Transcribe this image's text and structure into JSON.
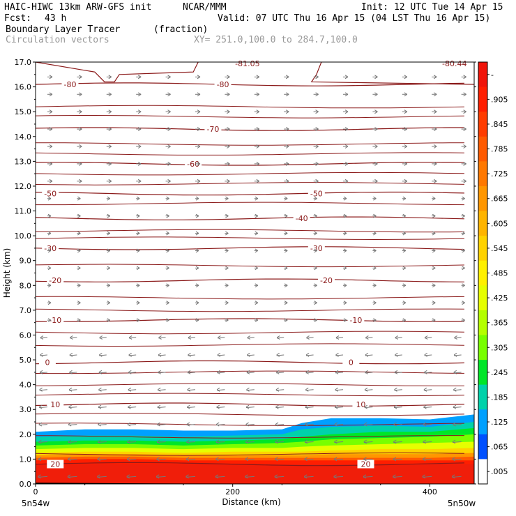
{
  "header": {
    "model": "HAIC-HIWC 13km ARW-GFS init",
    "org": "NCAR/MMM",
    "init": "Init: 12 UTC Tue 14 Apr 15",
    "fcst_label": "Fcst:",
    "fcst_value": "43 h",
    "valid": "Valid: 07 UTC Thu 16 Apr 15 (04 LST Thu 16 Apr 15)",
    "field": "Boundary Layer Tracer",
    "field_units": "(fraction)",
    "vectors": "Circulation vectors",
    "xy": "XY= 251.0,100.0 to 284.7,100.0"
  },
  "chart_data": {
    "type": "heatmap",
    "xlabel": "Distance (km)",
    "ylabel": "Height (km)",
    "xlim": [
      0,
      445
    ],
    "ylim": [
      0,
      17
    ],
    "x_ticks": [
      "0",
      "200",
      "400"
    ],
    "x_tick_values": [
      0,
      200,
      400
    ],
    "y_ticks": [
      "0.0",
      "1.0",
      "2.0",
      "3.0",
      "4.0",
      "5.0",
      "6.0",
      "7.0",
      "8.0",
      "9.0",
      "10.0",
      "11.0",
      "12.0",
      "13.0",
      "14.0",
      "15.0",
      "16.0",
      "17.0"
    ],
    "y_tick_values": [
      0,
      1,
      2,
      3,
      4,
      5,
      6,
      7,
      8,
      9,
      10,
      11,
      12,
      13,
      14,
      15,
      16,
      17
    ],
    "endpoint_left": "5n54w",
    "endpoint_right": "5n50w",
    "colorbar": {
      "labels": [
        "-",
        ".905",
        ".845",
        ".785",
        ".725",
        ".665",
        ".605",
        ".545",
        ".485",
        ".425",
        ".365",
        ".305",
        ".245",
        ".185",
        ".125",
        ".065",
        ".005"
      ],
      "colors": [
        "#f0140a",
        "#ff1e00",
        "#ff3c00",
        "#ff5a00",
        "#ff7800",
        "#ff9600",
        "#ffb400",
        "#ffd200",
        "#fff000",
        "#e6ff00",
        "#b4ff00",
        "#78ff00",
        "#00e628",
        "#00d2aa",
        "#00a0ff",
        "#0050ff",
        "#ffffff"
      ]
    },
    "tracer_layer": {
      "x_km": [
        0,
        50,
        100,
        150,
        200,
        250,
        270,
        300,
        350,
        400,
        445
      ],
      "top_km": [
        2.1,
        2.2,
        2.2,
        2.15,
        2.15,
        2.2,
        2.45,
        2.65,
        2.65,
        2.6,
        2.8
      ],
      "bands": [
        {
          "value": 0.065,
          "top_km": [
            2.1,
            2.2,
            2.2,
            2.15,
            2.15,
            2.2,
            2.45,
            2.65,
            2.65,
            2.6,
            2.8
          ]
        },
        {
          "value": 0.125,
          "top_km": [
            1.9,
            1.95,
            1.95,
            1.9,
            1.95,
            2.0,
            2.2,
            2.3,
            2.35,
            2.3,
            2.5
          ]
        },
        {
          "value": 0.185,
          "top_km": [
            1.7,
            1.75,
            1.75,
            1.7,
            1.75,
            1.8,
            1.9,
            2.0,
            2.1,
            2.1,
            2.25
          ]
        },
        {
          "value": 0.245,
          "top_km": [
            1.55,
            1.6,
            1.6,
            1.55,
            1.6,
            1.65,
            1.7,
            1.8,
            1.85,
            1.9,
            2.0
          ]
        },
        {
          "value": 0.365,
          "top_km": [
            1.4,
            1.45,
            1.45,
            1.4,
            1.45,
            1.45,
            1.5,
            1.55,
            1.6,
            1.65,
            1.7
          ]
        },
        {
          "value": 0.485,
          "top_km": [
            1.25,
            1.3,
            1.3,
            1.25,
            1.3,
            1.3,
            1.3,
            1.35,
            1.4,
            1.4,
            1.45
          ]
        },
        {
          "value": 0.605,
          "top_km": [
            1.15,
            1.2,
            1.2,
            1.15,
            1.15,
            1.15,
            1.15,
            1.2,
            1.2,
            1.2,
            1.25
          ]
        },
        {
          "value": 0.725,
          "top_km": [
            1.05,
            1.1,
            1.1,
            1.05,
            1.05,
            1.05,
            1.05,
            1.05,
            1.05,
            1.05,
            1.1
          ]
        },
        {
          "value": 0.845,
          "top_km": [
            0.95,
            1.0,
            1.0,
            0.95,
            0.95,
            0.95,
            0.95,
            0.95,
            0.95,
            0.95,
            0.95
          ]
        }
      ]
    },
    "temperature_contours": [
      {
        "label": "-80",
        "y_km": 16.1,
        "label_x_km": [
          35,
          190
        ]
      },
      {
        "label": "-70",
        "y_km": 14.3,
        "label_x_km": [
          180
        ]
      },
      {
        "label": "-60",
        "y_km": 12.9,
        "label_x_km": [
          160
        ]
      },
      {
        "label": "-50",
        "y_km": 11.7,
        "label_x_km": [
          15,
          285
        ]
      },
      {
        "label": "-40",
        "y_km": 10.7,
        "label_x_km": [
          270
        ]
      },
      {
        "label": "-30",
        "y_km": 9.5,
        "label_x_km": [
          15,
          285
        ]
      },
      {
        "label": "-20",
        "y_km": 8.2,
        "label_x_km": [
          20,
          295
        ]
      },
      {
        "label": "-10",
        "y_km": 6.6,
        "label_x_km": [
          20,
          325
        ]
      },
      {
        "label": "0",
        "y_km": 4.9,
        "label_x_km": [
          12,
          320
        ]
      },
      {
        "label": "10",
        "y_km": 3.2,
        "label_x_km": [
          20,
          330
        ]
      },
      {
        "label": "20",
        "y_km": 0.8,
        "label_x_km": [
          20,
          335
        ]
      }
    ],
    "top_contour_labels": [
      {
        "label": "-81.05",
        "x_km": 215,
        "y_km": 17.0
      },
      {
        "label": "-80.44",
        "x_km": 425,
        "y_km": 17.0
      }
    ],
    "vectors": {
      "x_km_step": 30,
      "y_km_step": 0.7,
      "note_direction": "westward below 6 km, eastward aloft"
    }
  }
}
